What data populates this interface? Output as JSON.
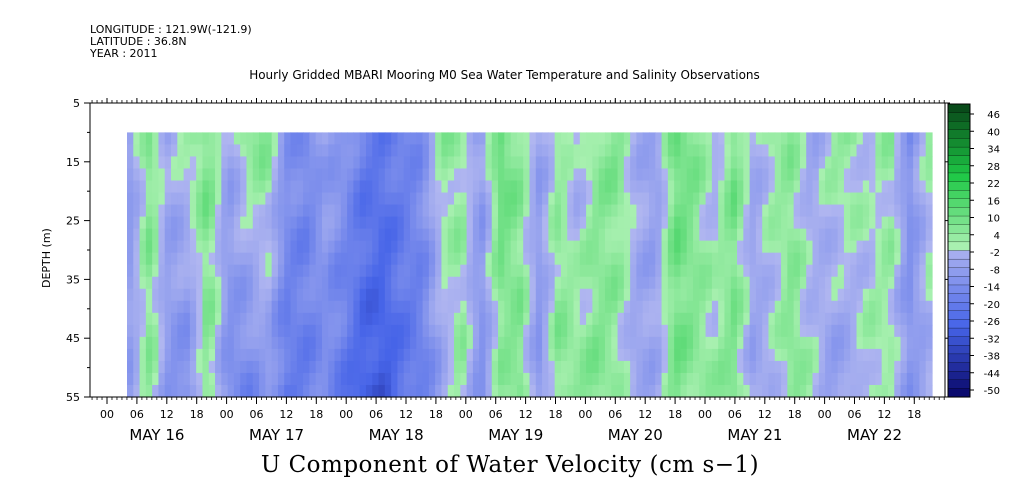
{
  "header": {
    "longitude": "LONGITUDE : 121.9W(-121.9)",
    "latitude": "LATITUDE : 36.8N",
    "year": "YEAR : 2011"
  },
  "chart_data": {
    "type": "heatmap",
    "title": "Hourly Gridded MBARI Mooring M0 Sea Water Temperature and Salinity Observations",
    "xlabel": "U Component of Water Velocity (cm s−1)",
    "ylabel": "DEPTH (m)",
    "y_range": [
      5,
      55
    ],
    "y_inverted": true,
    "y_ticks": [
      5,
      15,
      25,
      35,
      45,
      55
    ],
    "data_depth_range": [
      10,
      55
    ],
    "x_hour_ticks": [
      "00",
      "06",
      "12",
      "18",
      "00",
      "06",
      "12",
      "18",
      "00",
      "06",
      "12",
      "18",
      "00",
      "06",
      "12",
      "18",
      "00",
      "06",
      "12",
      "18",
      "00",
      "06",
      "12",
      "18",
      "00",
      "06",
      "12",
      "18"
    ],
    "x_day_labels": [
      "MAY 16",
      "MAY 17",
      "MAY 18",
      "MAY 19",
      "MAY 20",
      "MAY 21",
      "MAY 22"
    ],
    "colorbar": {
      "labels": [
        "46",
        "40",
        "34",
        "28",
        "22",
        "16",
        "10",
        "4",
        "-2",
        "-8",
        "-14",
        "-20",
        "-26",
        "-32",
        "-38",
        "-44",
        "-50"
      ],
      "range": [
        -50,
        50
      ],
      "step": 3
    },
    "hovmoller_profile": {
      "description_hours": "approximate U velocity (cm/s) per hour from May 16 00h",
      "time_hours": [
        4,
        8,
        12,
        16,
        20,
        24,
        28,
        32,
        36,
        40,
        44,
        48,
        52,
        56,
        60,
        64,
        68,
        72,
        76,
        80,
        84,
        88,
        92,
        96,
        100,
        104,
        108,
        112,
        116,
        120,
        124,
        128,
        132,
        136,
        140,
        144,
        148,
        152,
        156,
        160,
        164,
        168
      ],
      "surface_u": [
        -8,
        8,
        -4,
        4,
        10,
        -6,
        6,
        8,
        -10,
        -14,
        -6,
        -10,
        -18,
        -20,
        -16,
        -12,
        6,
        4,
        -8,
        14,
        6,
        -6,
        4,
        -4,
        6,
        8,
        -2,
        -8,
        12,
        8,
        -2,
        10,
        -4,
        4,
        6,
        -6,
        4,
        6,
        -2,
        6,
        -12,
        4
      ],
      "deep_u": [
        -6,
        6,
        -10,
        -14,
        8,
        -12,
        -16,
        -8,
        -20,
        -18,
        -14,
        -20,
        -28,
        -30,
        -22,
        -18,
        -6,
        6,
        -12,
        4,
        8,
        -10,
        8,
        6,
        8,
        4,
        -6,
        -4,
        10,
        6,
        4,
        8,
        -6,
        -2,
        8,
        2,
        -8,
        -6,
        4,
        2,
        -10,
        -4
      ]
    }
  }
}
